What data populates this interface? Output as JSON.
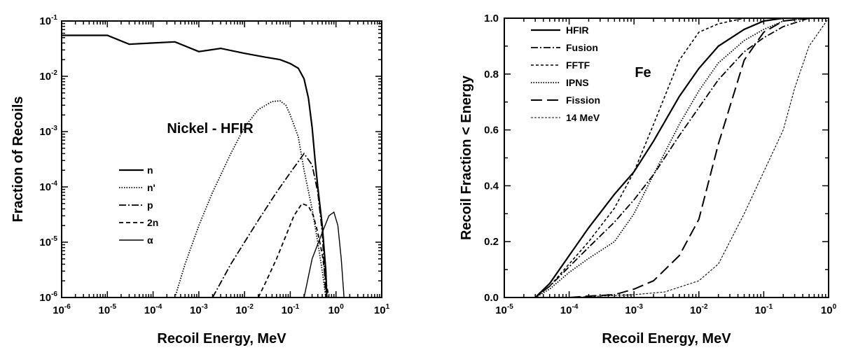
{
  "chart_data": [
    {
      "type": "line",
      "title": "",
      "annotation": "Nickel - HFIR",
      "xlabel": "Recoil Energy, MeV",
      "ylabel": "Fraction of Recoils",
      "xscale": "log",
      "yscale": "log",
      "xlim": [
        1e-06,
        10
      ],
      "ylim": [
        1e-06,
        0.1
      ],
      "x_ticks": [
        {
          "base": "10",
          "exp": "-6",
          "value": 1e-06
        },
        {
          "base": "10",
          "exp": "-5",
          "value": 1e-05
        },
        {
          "base": "10",
          "exp": "-4",
          "value": 0.0001
        },
        {
          "base": "10",
          "exp": "-3",
          "value": 0.001
        },
        {
          "base": "10",
          "exp": "-2",
          "value": 0.01
        },
        {
          "base": "10",
          "exp": "-1",
          "value": 0.1
        },
        {
          "base": "10",
          "exp": "0",
          "value": 1
        },
        {
          "base": "10",
          "exp": "1",
          "value": 10
        }
      ],
      "y_ticks": [
        {
          "base": "10",
          "exp": "-1",
          "value": 0.1
        },
        {
          "base": "10",
          "exp": "-2",
          "value": 0.01
        },
        {
          "base": "10",
          "exp": "-3",
          "value": 0.001
        },
        {
          "base": "10",
          "exp": "-4",
          "value": 0.0001
        },
        {
          "base": "10",
          "exp": "-5",
          "value": 1e-05
        },
        {
          "base": "10",
          "exp": "-6",
          "value": 1e-06
        }
      ],
      "legend_position": "center-left",
      "grid": false,
      "series": [
        {
          "name": "n",
          "style": "solid",
          "x": [
            1e-06,
            1e-05,
            3e-05,
            0.0001,
            0.0003,
            0.001,
            0.003,
            0.01,
            0.03,
            0.06,
            0.1,
            0.15,
            0.2,
            0.25,
            0.3,
            0.35,
            0.4,
            0.5,
            0.6,
            0.63
          ],
          "y": [
            0.055,
            0.055,
            0.038,
            0.04,
            0.042,
            0.028,
            0.032,
            0.026,
            0.022,
            0.02,
            0.017,
            0.014,
            0.009,
            0.004,
            0.0012,
            0.0003,
            0.0001,
            2e-05,
            3e-06,
            1e-06
          ]
        },
        {
          "name": "n'",
          "style": "dotted",
          "x": [
            0.0003,
            0.0005,
            0.001,
            0.002,
            0.005,
            0.01,
            0.02,
            0.04,
            0.06,
            0.08,
            0.1,
            0.15,
            0.2,
            0.3,
            0.4,
            0.5,
            0.6
          ],
          "y": [
            1e-06,
            4e-06,
            2e-05,
            8e-05,
            0.0004,
            0.0012,
            0.0025,
            0.0035,
            0.0036,
            0.003,
            0.002,
            0.0008,
            0.0002,
            4e-05,
            1e-05,
            3e-06,
            1e-06
          ]
        },
        {
          "name": "p",
          "style": "dash-dot",
          "x": [
            0.002,
            0.005,
            0.01,
            0.02,
            0.05,
            0.1,
            0.2,
            0.3,
            0.4,
            0.5,
            0.6
          ],
          "y": [
            1e-06,
            4e-06,
            1e-05,
            2.5e-05,
            8e-05,
            0.00018,
            0.0004,
            0.00025,
            8e-05,
            1.5e-05,
            1e-06
          ]
        },
        {
          "name": "2n",
          "style": "dashed",
          "x": [
            0.02,
            0.03,
            0.05,
            0.08,
            0.12,
            0.18,
            0.25,
            0.32,
            0.4,
            0.5,
            0.6,
            0.7
          ],
          "y": [
            1e-06,
            2e-06,
            5e-06,
            1.3e-05,
            3e-05,
            5e-05,
            4.5e-05,
            3e-05,
            1.5e-05,
            6e-06,
            2e-06,
            1e-06
          ]
        },
        {
          "name": "α",
          "style": "solid-thin",
          "x": [
            0.2,
            0.3,
            0.5,
            0.7,
            0.9,
            1.1,
            1.3,
            1.5
          ],
          "y": [
            1e-06,
            5e-06,
            1.5e-05,
            3e-05,
            3.5e-05,
            2e-05,
            5e-06,
            1e-06
          ]
        }
      ]
    },
    {
      "type": "line",
      "title": "",
      "annotation": "Fe",
      "xlabel": "Recoil Energy, MeV",
      "ylabel": "Recoil Fraction < Energy",
      "xscale": "log",
      "yscale": "linear",
      "xlim": [
        1e-05,
        1
      ],
      "ylim": [
        0,
        1
      ],
      "x_ticks": [
        {
          "base": "10",
          "exp": "-5",
          "value": 1e-05
        },
        {
          "base": "10",
          "exp": "-4",
          "value": 0.0001
        },
        {
          "base": "10",
          "exp": "-3",
          "value": 0.001
        },
        {
          "base": "10",
          "exp": "-2",
          "value": 0.01
        },
        {
          "base": "10",
          "exp": "-1",
          "value": 0.1
        },
        {
          "base": "10",
          "exp": "0",
          "value": 1
        }
      ],
      "y_ticks": [
        {
          "label": "1.0",
          "value": 1.0
        },
        {
          "label": "0.8",
          "value": 0.8
        },
        {
          "label": "0.6",
          "value": 0.6
        },
        {
          "label": "0.4",
          "value": 0.4
        },
        {
          "label": "0.2",
          "value": 0.2
        },
        {
          "label": "0.0",
          "value": 0.0
        }
      ],
      "legend_position": "top-left",
      "grid": false,
      "series": [
        {
          "name": "HFIR",
          "style": "solid",
          "x": [
            3e-05,
            5e-05,
            0.0001,
            0.0002,
            0.0005,
            0.001,
            0.002,
            0.005,
            0.01,
            0.02,
            0.05,
            0.1,
            0.2,
            0.5,
            1
          ],
          "y": [
            0.0,
            0.05,
            0.15,
            0.25,
            0.37,
            0.45,
            0.56,
            0.72,
            0.82,
            0.9,
            0.96,
            0.99,
            1.0,
            1.0,
            1.0
          ]
        },
        {
          "name": "Fusion",
          "style": "dash-dot",
          "x": [
            3e-05,
            5e-05,
            0.0001,
            0.0002,
            0.0005,
            0.001,
            0.002,
            0.005,
            0.01,
            0.02,
            0.05,
            0.1,
            0.2,
            0.5,
            1
          ],
          "y": [
            0.0,
            0.04,
            0.11,
            0.18,
            0.27,
            0.35,
            0.44,
            0.58,
            0.68,
            0.78,
            0.88,
            0.93,
            0.97,
            1.0,
            1.0
          ]
        },
        {
          "name": "FFTF",
          "style": "dashed-short",
          "x": [
            3e-05,
            5e-05,
            0.0001,
            0.0002,
            0.0005,
            0.001,
            0.002,
            0.005,
            0.01,
            0.02,
            0.05,
            0.1,
            0.2
          ],
          "y": [
            0.0,
            0.04,
            0.12,
            0.2,
            0.32,
            0.45,
            0.62,
            0.85,
            0.95,
            0.98,
            1.0,
            1.0,
            1.0
          ]
        },
        {
          "name": "IPNS",
          "style": "dotted",
          "x": [
            3e-05,
            5e-05,
            0.0001,
            0.0002,
            0.0005,
            0.001,
            0.002,
            0.005,
            0.01,
            0.02,
            0.05,
            0.1,
            0.2,
            0.5,
            1
          ],
          "y": [
            0.0,
            0.03,
            0.09,
            0.14,
            0.2,
            0.3,
            0.44,
            0.62,
            0.74,
            0.84,
            0.92,
            0.96,
            0.99,
            1.0,
            1.0
          ]
        },
        {
          "name": "Fission",
          "style": "long-dash",
          "x": [
            0.0001,
            0.0002,
            0.0005,
            0.001,
            0.002,
            0.005,
            0.01,
            0.02,
            0.05,
            0.1,
            0.2,
            0.5
          ],
          "y": [
            0.0,
            0.005,
            0.01,
            0.03,
            0.06,
            0.15,
            0.28,
            0.55,
            0.85,
            0.95,
            0.99,
            1.0
          ]
        },
        {
          "name": "14 MeV",
          "style": "dashed-thin",
          "x": [
            0.0001,
            0.0003,
            0.001,
            0.003,
            0.01,
            0.02,
            0.05,
            0.1,
            0.2,
            0.3,
            0.5,
            1
          ],
          "y": [
            0.0,
            0.005,
            0.01,
            0.02,
            0.06,
            0.12,
            0.3,
            0.45,
            0.6,
            0.75,
            0.9,
            1.0
          ]
        }
      ]
    }
  ]
}
